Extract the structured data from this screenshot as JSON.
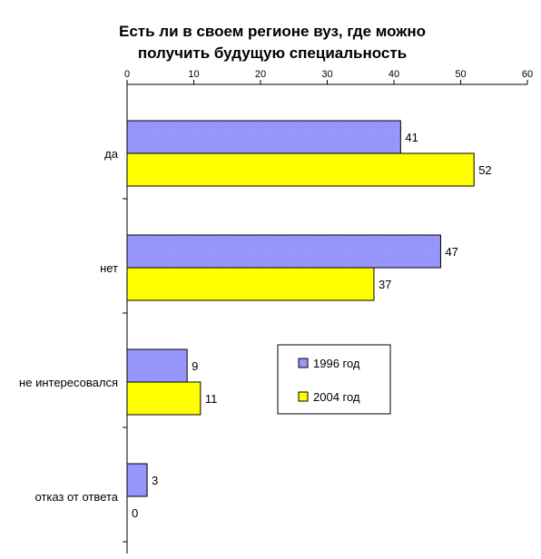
{
  "chart_data": {
    "type": "bar",
    "orientation": "horizontal",
    "title": "Есть ли в своем регионе вуз, где можно получить будущую специальность",
    "title_lines": [
      "Есть ли в своем регионе вуз, где можно",
      "получить будущую специальность"
    ],
    "xlim": [
      0,
      60
    ],
    "x_ticks": [
      "0",
      "10",
      "20",
      "30",
      "40",
      "50",
      "60"
    ],
    "x_axis_position": "top",
    "grid": false,
    "legend_position": "center-right",
    "categories": [
      "да",
      "нет",
      "не интересовался",
      "отказ от ответа"
    ],
    "series": [
      {
        "name": "1996 год",
        "values": [
          41,
          47,
          9,
          3
        ],
        "color": "#9999ff",
        "pattern": "dotted"
      },
      {
        "name": "2004 год",
        "values": [
          52,
          37,
          11,
          0
        ],
        "color": "#ffff00",
        "pattern": "solid"
      }
    ]
  }
}
